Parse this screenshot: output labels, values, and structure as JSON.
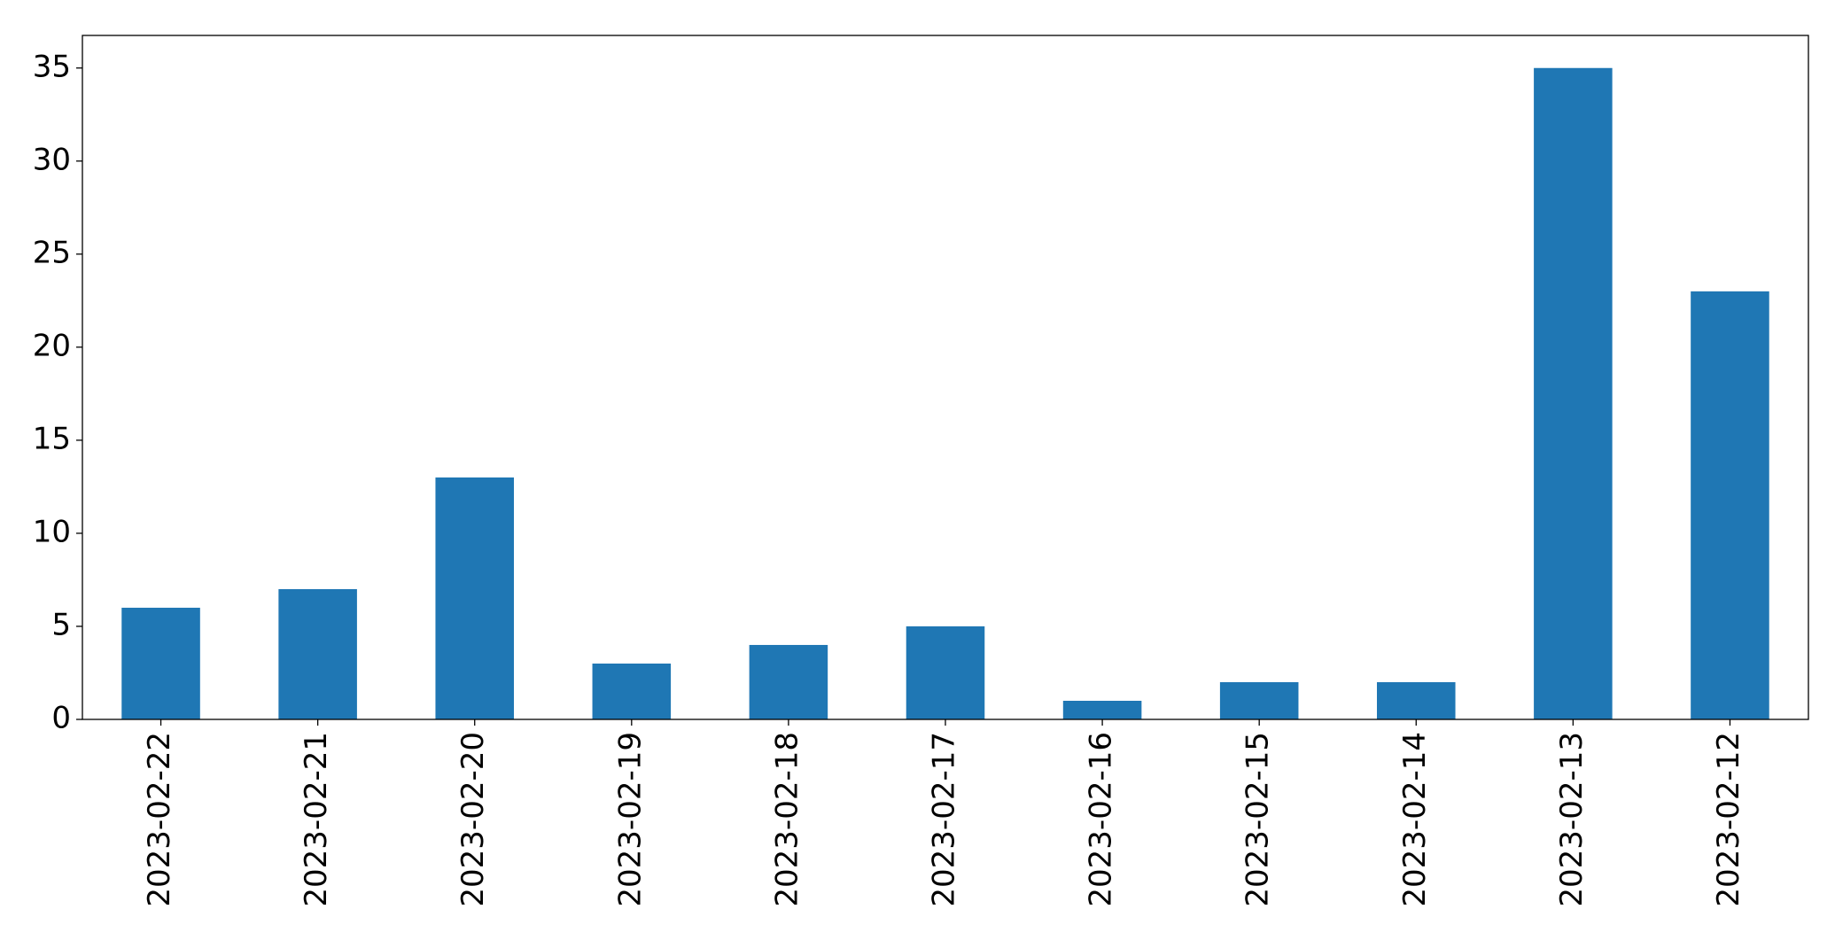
{
  "chart_data": {
    "type": "bar",
    "categories": [
      "2023-02-22",
      "2023-02-21",
      "2023-02-20",
      "2023-02-19",
      "2023-02-18",
      "2023-02-17",
      "2023-02-16",
      "2023-02-15",
      "2023-02-14",
      "2023-02-13",
      "2023-02-12"
    ],
    "values": [
      6,
      7,
      13,
      3,
      4,
      5,
      1,
      2,
      2,
      35,
      23
    ],
    "color": "#1f77b4",
    "ylim": [
      0,
      36.75
    ],
    "yticks": [
      0,
      5,
      10,
      15,
      20,
      25,
      30,
      35
    ],
    "grid": false
  }
}
